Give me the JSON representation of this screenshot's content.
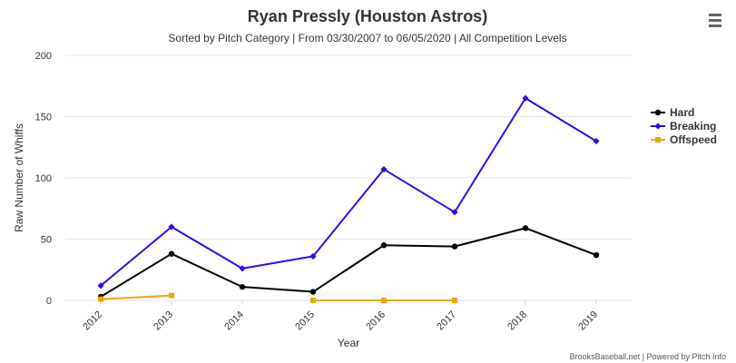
{
  "chart_data": {
    "type": "line",
    "title": "Ryan Pressly (Houston Astros)",
    "subtitle": "Sorted by Pitch Category | From 03/30/2007 to 06/05/2020 | All Competition Levels",
    "xlabel": "Year",
    "ylabel": "Raw Number of Whiffs",
    "categories": [
      "2012",
      "2013",
      "2014",
      "2015",
      "2016",
      "2017",
      "2018",
      "2019"
    ],
    "ylim": [
      0,
      200
    ],
    "yticks": [
      0,
      50,
      100,
      150,
      200
    ],
    "grid": "horizontal",
    "legend": "right",
    "series": [
      {
        "name": "Hard",
        "color": "#000000",
        "marker": "circle",
        "values": [
          3,
          38,
          11,
          7,
          45,
          44,
          59,
          37
        ]
      },
      {
        "name": "Breaking",
        "color": "#2b0fe8",
        "marker": "diamond",
        "values": [
          12,
          60,
          26,
          36,
          107,
          72,
          165,
          130
        ]
      },
      {
        "name": "Offspeed",
        "color": "#f0a30a",
        "marker": "square",
        "values": [
          1,
          4,
          null,
          0,
          0,
          0,
          null,
          null
        ]
      }
    ]
  },
  "credits": "BrooksBaseball.net | Powered by Pitch Info",
  "menu_icon": "hamburger-menu-icon"
}
